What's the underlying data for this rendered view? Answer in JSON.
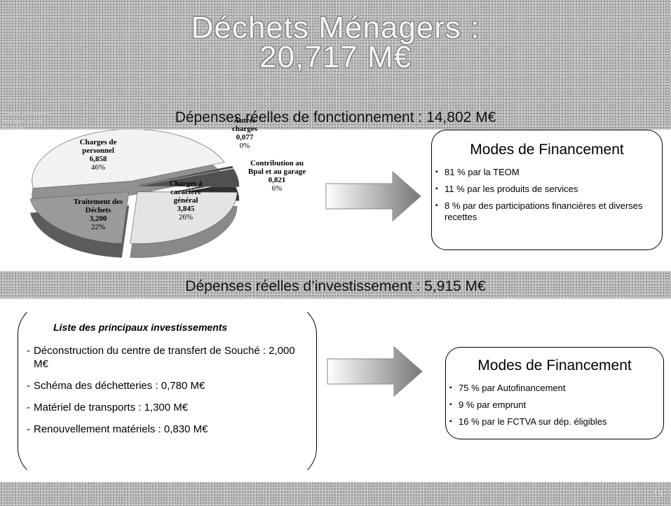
{
  "title_line1": "Déchets Ménagers :",
  "title_line2": "20,717 M€",
  "footnote": "* Hors virements internes entre budgets",
  "section1": {
    "heading": "Dépenses réelles de fonctionnement : 14,802 M€",
    "financing": {
      "title": "Modes de Financement",
      "items": [
        "81 % par la TEOM",
        "11 % par les produits de services",
        "8 % par des participations financières et diverses recettes"
      ]
    }
  },
  "chart_data": {
    "type": "pie",
    "categories": [
      "Charges de personnel",
      "Autres charges",
      "Contribution au Bpal et au garage",
      "Charges à caractère général",
      "Traitement des Déchets"
    ],
    "values": [
      6.858,
      0.077,
      0.821,
      3.845,
      3.2
    ],
    "value_labels": [
      "6,858",
      "0,077",
      "0,821",
      "3,845",
      "3,200"
    ],
    "percents": [
      46,
      0,
      6,
      26,
      22
    ],
    "percent_labels": [
      "46%",
      "0%",
      "6%",
      "26%",
      "22%"
    ],
    "colors": [
      "#f2f2f2",
      "#3a3a3a",
      "#505050",
      "#e4e4e4",
      "#9a9a9a"
    ]
  },
  "section2": {
    "heading": "Dépenses réelles d’investissement : 5,915 M€",
    "list_title": "Liste des principaux investissements",
    "list": [
      "Déconstruction du centre de transfert de Souché : 2,000 M€",
      "Schéma des déchetteries : 0,780 M€",
      "Matériel de transports : 1,300 M€",
      "Renouvellement matériels : 0,830 M€"
    ],
    "financing": {
      "title": "Modes de Financement",
      "items": [
        "75 % par Autofinancement",
        "9 % par emprunt",
        "16 % par le FCTVA sur dép. éligibles"
      ]
    }
  },
  "page_number": "19"
}
